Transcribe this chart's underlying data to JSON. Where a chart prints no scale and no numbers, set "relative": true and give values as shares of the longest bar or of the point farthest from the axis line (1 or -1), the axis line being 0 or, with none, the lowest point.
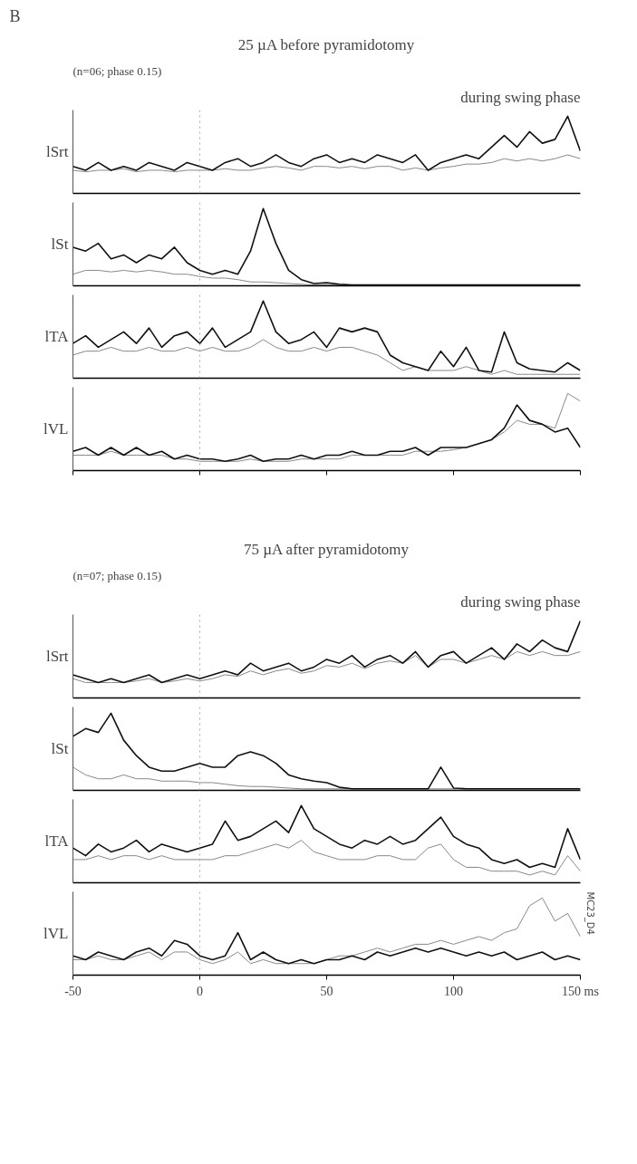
{
  "chart_data": [
    {
      "type": "line",
      "relative": true,
      "title": "25 µA before pyramidotomy",
      "subtitle": "(n=06; phase 0.15)",
      "annotations": [
        "during swing phase",
        "B"
      ],
      "ylabel": "lSrt",
      "xlim": [
        -50,
        150
      ],
      "tick_labels": false,
      "ref_lines": [
        {
          "axis": "x",
          "value": 0,
          "color": "#aaaaaa",
          "line_style": "dotted"
        }
      ],
      "x": [
        -50,
        -45,
        -40,
        -35,
        -30,
        -25,
        -20,
        -15,
        -10,
        -5,
        0,
        5,
        10,
        15,
        20,
        25,
        30,
        35,
        40,
        45,
        50,
        55,
        60,
        65,
        70,
        75,
        80,
        85,
        90,
        95,
        100,
        105,
        110,
        115,
        120,
        125,
        130,
        135,
        140,
        145,
        150
      ],
      "series": [
        {
          "color": "#888888",
          "values": [
            0.3,
            0.28,
            0.3,
            0.3,
            0.32,
            0.28,
            0.3,
            0.3,
            0.28,
            0.3,
            0.3,
            0.3,
            0.32,
            0.3,
            0.3,
            0.33,
            0.35,
            0.33,
            0.3,
            0.35,
            0.35,
            0.33,
            0.35,
            0.32,
            0.35,
            0.35,
            0.3,
            0.33,
            0.3,
            0.33,
            0.35,
            0.38,
            0.38,
            0.4,
            0.45,
            0.42,
            0.45,
            0.42,
            0.45,
            0.5,
            0.45
          ]
        },
        {
          "color": "#111111",
          "values": [
            0.35,
            0.3,
            0.4,
            0.3,
            0.35,
            0.3,
            0.4,
            0.35,
            0.3,
            0.4,
            0.35,
            0.3,
            0.4,
            0.45,
            0.35,
            0.4,
            0.5,
            0.4,
            0.35,
            0.45,
            0.5,
            0.4,
            0.45,
            0.4,
            0.5,
            0.45,
            0.4,
            0.5,
            0.3,
            0.4,
            0.45,
            0.5,
            0.45,
            0.6,
            0.75,
            0.6,
            0.8,
            0.65,
            0.7,
            1.0,
            0.55
          ]
        }
      ]
    },
    {
      "type": "line",
      "relative": true,
      "ylabel": "lSt",
      "xlim": [
        -50,
        150
      ],
      "tick_labels": false,
      "ref_lines": [
        {
          "axis": "x",
          "value": 0,
          "color": "#aaaaaa",
          "line_style": "dotted"
        }
      ],
      "x": [
        -50,
        -45,
        -40,
        -35,
        -30,
        -25,
        -20,
        -15,
        -10,
        -5,
        0,
        5,
        10,
        15,
        20,
        25,
        30,
        35,
        40,
        45,
        50,
        55,
        60,
        65,
        70,
        75,
        80,
        85,
        90,
        95,
        100,
        105,
        110,
        115,
        120,
        125,
        130,
        135,
        140,
        145,
        150
      ],
      "series": [
        {
          "color": "#888888",
          "values": [
            0.15,
            0.2,
            0.2,
            0.18,
            0.2,
            0.18,
            0.2,
            0.18,
            0.15,
            0.15,
            0.12,
            0.1,
            0.1,
            0.08,
            0.05,
            0.05,
            0.04,
            0.03,
            0.02,
            0.01,
            0.01,
            0.01,
            0.01,
            0.01,
            0.01,
            0.01,
            0.01,
            0.01,
            0.01,
            0.01,
            0.01,
            0.01,
            0.01,
            0.01,
            0.01,
            0.01,
            0.01,
            0.01,
            0.01,
            0.01,
            0.01
          ]
        },
        {
          "color": "#111111",
          "values": [
            0.5,
            0.45,
            0.55,
            0.35,
            0.4,
            0.3,
            0.4,
            0.35,
            0.5,
            0.3,
            0.2,
            0.15,
            0.2,
            0.15,
            0.45,
            1.0,
            0.55,
            0.2,
            0.08,
            0.03,
            0.04,
            0.02,
            0.01,
            0.01,
            0.01,
            0.01,
            0.01,
            0.01,
            0.01,
            0.01,
            0.01,
            0.01,
            0.01,
            0.01,
            0.01,
            0.01,
            0.01,
            0.01,
            0.01,
            0.01,
            0.01
          ]
        }
      ]
    },
    {
      "type": "line",
      "relative": true,
      "ylabel": "lTA",
      "xlim": [
        -50,
        150
      ],
      "tick_labels": false,
      "ref_lines": [
        {
          "axis": "x",
          "value": 0,
          "color": "#aaaaaa",
          "line_style": "dotted"
        }
      ],
      "x": [
        -50,
        -45,
        -40,
        -35,
        -30,
        -25,
        -20,
        -15,
        -10,
        -5,
        0,
        5,
        10,
        15,
        20,
        25,
        30,
        35,
        40,
        45,
        50,
        55,
        60,
        65,
        70,
        75,
        80,
        85,
        90,
        95,
        100,
        105,
        110,
        115,
        120,
        125,
        130,
        135,
        140,
        145,
        150
      ],
      "series": [
        {
          "color": "#888888",
          "values": [
            0.3,
            0.35,
            0.35,
            0.4,
            0.35,
            0.35,
            0.4,
            0.35,
            0.35,
            0.4,
            0.35,
            0.4,
            0.35,
            0.35,
            0.4,
            0.5,
            0.4,
            0.35,
            0.35,
            0.4,
            0.35,
            0.4,
            0.4,
            0.35,
            0.3,
            0.2,
            0.1,
            0.15,
            0.1,
            0.1,
            0.1,
            0.15,
            0.1,
            0.05,
            0.1,
            0.05,
            0.05,
            0.05,
            0.05,
            0.05,
            0.05
          ]
        },
        {
          "color": "#111111",
          "values": [
            0.45,
            0.55,
            0.4,
            0.5,
            0.6,
            0.45,
            0.65,
            0.4,
            0.55,
            0.6,
            0.45,
            0.65,
            0.4,
            0.5,
            0.6,
            1.0,
            0.6,
            0.45,
            0.5,
            0.6,
            0.4,
            0.65,
            0.6,
            0.65,
            0.6,
            0.3,
            0.2,
            0.15,
            0.1,
            0.35,
            0.15,
            0.4,
            0.1,
            0.08,
            0.6,
            0.2,
            0.12,
            0.1,
            0.08,
            0.2,
            0.1
          ]
        }
      ]
    },
    {
      "type": "line",
      "relative": true,
      "ylabel": "lVL",
      "xlim": [
        -50,
        150
      ],
      "xticks": [
        -50,
        0,
        50,
        100,
        150
      ],
      "tick_labels": false,
      "ref_lines": [
        {
          "axis": "x",
          "value": 0,
          "color": "#aaaaaa",
          "line_style": "dotted"
        }
      ],
      "x": [
        -50,
        -45,
        -40,
        -35,
        -30,
        -25,
        -20,
        -15,
        -10,
        -5,
        0,
        5,
        10,
        15,
        20,
        25,
        30,
        35,
        40,
        45,
        50,
        55,
        60,
        65,
        70,
        75,
        80,
        85,
        90,
        95,
        100,
        105,
        110,
        115,
        120,
        125,
        130,
        135,
        140,
        145,
        150
      ],
      "series": [
        {
          "color": "#888888",
          "values": [
            0.2,
            0.2,
            0.2,
            0.25,
            0.2,
            0.2,
            0.2,
            0.2,
            0.15,
            0.15,
            0.12,
            0.12,
            0.12,
            0.12,
            0.15,
            0.12,
            0.12,
            0.12,
            0.15,
            0.15,
            0.15,
            0.15,
            0.2,
            0.2,
            0.2,
            0.2,
            0.2,
            0.25,
            0.25,
            0.25,
            0.27,
            0.3,
            0.35,
            0.4,
            0.5,
            0.65,
            0.6,
            0.6,
            0.55,
            1.0,
            0.9
          ]
        },
        {
          "color": "#111111",
          "values": [
            0.25,
            0.3,
            0.2,
            0.3,
            0.2,
            0.3,
            0.2,
            0.25,
            0.15,
            0.2,
            0.15,
            0.15,
            0.12,
            0.15,
            0.2,
            0.12,
            0.15,
            0.15,
            0.2,
            0.15,
            0.2,
            0.2,
            0.25,
            0.2,
            0.2,
            0.25,
            0.25,
            0.3,
            0.2,
            0.3,
            0.3,
            0.3,
            0.35,
            0.4,
            0.55,
            0.85,
            0.65,
            0.6,
            0.5,
            0.55,
            0.3
          ]
        }
      ]
    },
    {
      "type": "line",
      "relative": true,
      "title": "75 µA after pyramidotomy",
      "subtitle": "(n=07; phase 0.15)",
      "annotations": [
        "during swing phase"
      ],
      "ylabel": "lSrt",
      "xlim": [
        -50,
        150
      ],
      "tick_labels": false,
      "ref_lines": [
        {
          "axis": "x",
          "value": 0,
          "color": "#aaaaaa",
          "line_style": "dotted"
        }
      ],
      "x": [
        -50,
        -45,
        -40,
        -35,
        -30,
        -25,
        -20,
        -15,
        -10,
        -5,
        0,
        5,
        10,
        15,
        20,
        25,
        30,
        35,
        40,
        45,
        50,
        55,
        60,
        65,
        70,
        75,
        80,
        85,
        90,
        95,
        100,
        105,
        110,
        115,
        120,
        125,
        130,
        135,
        140,
        145,
        150
      ],
      "series": [
        {
          "color": "#888888",
          "values": [
            0.25,
            0.2,
            0.2,
            0.2,
            0.2,
            0.22,
            0.25,
            0.2,
            0.22,
            0.25,
            0.22,
            0.25,
            0.3,
            0.28,
            0.35,
            0.3,
            0.35,
            0.38,
            0.32,
            0.35,
            0.42,
            0.4,
            0.45,
            0.38,
            0.45,
            0.48,
            0.45,
            0.55,
            0.4,
            0.5,
            0.5,
            0.45,
            0.5,
            0.55,
            0.5,
            0.6,
            0.55,
            0.6,
            0.55,
            0.55,
            0.6
          ]
        },
        {
          "color": "#111111",
          "values": [
            0.3,
            0.25,
            0.2,
            0.25,
            0.2,
            0.25,
            0.3,
            0.2,
            0.25,
            0.3,
            0.25,
            0.3,
            0.35,
            0.3,
            0.45,
            0.35,
            0.4,
            0.45,
            0.35,
            0.4,
            0.5,
            0.45,
            0.55,
            0.4,
            0.5,
            0.55,
            0.45,
            0.6,
            0.4,
            0.55,
            0.6,
            0.45,
            0.55,
            0.65,
            0.5,
            0.7,
            0.6,
            0.75,
            0.65,
            0.6,
            1.0
          ]
        }
      ]
    },
    {
      "type": "line",
      "relative": true,
      "ylabel": "lSt",
      "xlim": [
        -50,
        150
      ],
      "tick_labels": false,
      "ref_lines": [
        {
          "axis": "x",
          "value": 0,
          "color": "#aaaaaa",
          "line_style": "dotted"
        }
      ],
      "x": [
        -50,
        -45,
        -40,
        -35,
        -30,
        -25,
        -20,
        -15,
        -10,
        -5,
        0,
        5,
        10,
        15,
        20,
        25,
        30,
        35,
        40,
        45,
        50,
        55,
        60,
        65,
        70,
        75,
        80,
        85,
        90,
        95,
        100,
        105,
        110,
        115,
        120,
        125,
        130,
        135,
        140,
        145,
        150
      ],
      "series": [
        {
          "color": "#888888",
          "values": [
            0.3,
            0.2,
            0.15,
            0.15,
            0.2,
            0.15,
            0.15,
            0.12,
            0.12,
            0.12,
            0.1,
            0.1,
            0.08,
            0.06,
            0.05,
            0.05,
            0.04,
            0.03,
            0.02,
            0.02,
            0.02,
            0.02,
            0.02,
            0.02,
            0.02,
            0.02,
            0.02,
            0.02,
            0.02,
            0.02,
            0.02,
            0.02,
            0.02,
            0.02,
            0.02,
            0.02,
            0.02,
            0.02,
            0.02,
            0.02,
            0.02
          ]
        },
        {
          "color": "#111111",
          "values": [
            0.7,
            0.8,
            0.75,
            1.0,
            0.65,
            0.45,
            0.3,
            0.25,
            0.25,
            0.3,
            0.35,
            0.3,
            0.3,
            0.45,
            0.5,
            0.45,
            0.35,
            0.2,
            0.15,
            0.12,
            0.1,
            0.04,
            0.02,
            0.02,
            0.02,
            0.02,
            0.02,
            0.02,
            0.02,
            0.3,
            0.03,
            0.02,
            0.02,
            0.02,
            0.02,
            0.02,
            0.02,
            0.02,
            0.02,
            0.02,
            0.02
          ]
        }
      ]
    },
    {
      "type": "line",
      "relative": true,
      "ylabel": "lTA",
      "xlim": [
        -50,
        150
      ],
      "tick_labels": false,
      "ref_lines": [
        {
          "axis": "x",
          "value": 0,
          "color": "#aaaaaa",
          "line_style": "dotted"
        }
      ],
      "x": [
        -50,
        -45,
        -40,
        -35,
        -30,
        -25,
        -20,
        -15,
        -10,
        -5,
        0,
        5,
        10,
        15,
        20,
        25,
        30,
        35,
        40,
        45,
        50,
        55,
        60,
        65,
        70,
        75,
        80,
        85,
        90,
        95,
        100,
        105,
        110,
        115,
        120,
        125,
        130,
        135,
        140,
        145,
        150
      ],
      "series": [
        {
          "color": "#888888",
          "values": [
            0.3,
            0.3,
            0.35,
            0.3,
            0.35,
            0.35,
            0.3,
            0.35,
            0.3,
            0.3,
            0.3,
            0.3,
            0.35,
            0.35,
            0.4,
            0.45,
            0.5,
            0.45,
            0.55,
            0.4,
            0.35,
            0.3,
            0.3,
            0.3,
            0.35,
            0.35,
            0.3,
            0.3,
            0.45,
            0.5,
            0.3,
            0.2,
            0.2,
            0.15,
            0.15,
            0.15,
            0.1,
            0.15,
            0.1,
            0.35,
            0.15
          ]
        },
        {
          "color": "#111111",
          "values": [
            0.45,
            0.35,
            0.5,
            0.4,
            0.45,
            0.55,
            0.4,
            0.5,
            0.45,
            0.4,
            0.45,
            0.5,
            0.8,
            0.55,
            0.6,
            0.7,
            0.8,
            0.65,
            1.0,
            0.7,
            0.6,
            0.5,
            0.45,
            0.55,
            0.5,
            0.6,
            0.5,
            0.55,
            0.7,
            0.85,
            0.6,
            0.5,
            0.45,
            0.3,
            0.25,
            0.3,
            0.2,
            0.25,
            0.2,
            0.7,
            0.3
          ]
        }
      ]
    },
    {
      "type": "line",
      "relative": true,
      "ylabel": "lVL",
      "annotations": [
        "MC23_D4"
      ],
      "xlim": [
        -50,
        150
      ],
      "xticks": [
        -50,
        0,
        50,
        100,
        {
          "value": 150,
          "label": "150 ms"
        }
      ],
      "tick_labels": "x",
      "ref_lines": [
        {
          "axis": "x",
          "value": 0,
          "color": "#aaaaaa",
          "line_style": "dotted"
        }
      ],
      "x": [
        -50,
        -45,
        -40,
        -35,
        -30,
        -25,
        -20,
        -15,
        -10,
        -5,
        0,
        5,
        10,
        15,
        20,
        25,
        30,
        35,
        40,
        45,
        50,
        55,
        60,
        65,
        70,
        75,
        80,
        85,
        90,
        95,
        100,
        105,
        110,
        115,
        120,
        125,
        130,
        135,
        140,
        145,
        150
      ],
      "series": [
        {
          "color": "#888888",
          "values": [
            0.2,
            0.2,
            0.25,
            0.2,
            0.2,
            0.25,
            0.3,
            0.2,
            0.3,
            0.3,
            0.2,
            0.15,
            0.2,
            0.3,
            0.15,
            0.2,
            0.15,
            0.15,
            0.15,
            0.15,
            0.2,
            0.25,
            0.25,
            0.3,
            0.35,
            0.3,
            0.35,
            0.4,
            0.4,
            0.45,
            0.4,
            0.45,
            0.5,
            0.45,
            0.55,
            0.6,
            0.9,
            1.0,
            0.7,
            0.8,
            0.5
          ]
        },
        {
          "color": "#111111",
          "values": [
            0.25,
            0.2,
            0.3,
            0.25,
            0.2,
            0.3,
            0.35,
            0.25,
            0.45,
            0.4,
            0.25,
            0.2,
            0.25,
            0.55,
            0.2,
            0.3,
            0.2,
            0.15,
            0.2,
            0.15,
            0.2,
            0.2,
            0.25,
            0.2,
            0.3,
            0.25,
            0.3,
            0.35,
            0.3,
            0.35,
            0.3,
            0.25,
            0.3,
            0.25,
            0.3,
            0.2,
            0.25,
            0.3,
            0.2,
            0.25,
            0.2
          ]
        }
      ]
    }
  ]
}
